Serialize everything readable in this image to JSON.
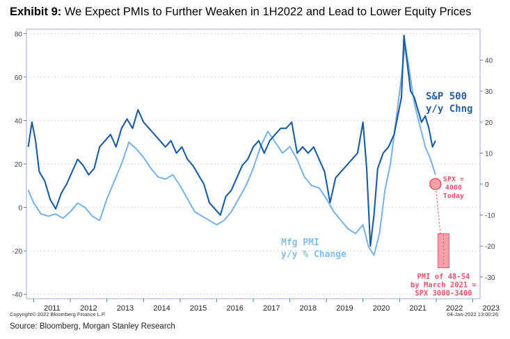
{
  "exhibit": {
    "label": "Exhibit 9:",
    "title": "We Expect PMIs to Further Weaken in 1H2022 and Lead to Lower Equity Prices"
  },
  "source": "Source: Bloomberg, Morgan Stanley Research",
  "copyright": "Copyright© 2022 Bloomberg Finance L.P.",
  "timestamp": "04-Jan-2022 13:00:26",
  "colors": {
    "spx_line": "#1a5aa0",
    "pmi_line": "#7ab4e6",
    "spx_label": "#2a5f9e",
    "pmi_label": "#86bbe8",
    "annotation": "#e0566f",
    "box_fill": "#f6a0a8",
    "axis": "#5a7fb3"
  },
  "chart_data": {
    "type": "line",
    "title": "We Expect PMIs to Further Weaken in 1H2022 and Lead to Lower Equity Prices",
    "x_label_ticks": [
      "2011",
      "2012",
      "2013",
      "2014",
      "2015",
      "2016",
      "2017",
      "2018",
      "2019",
      "2020",
      "2021",
      "2022",
      "2023"
    ],
    "xlim": [
      2010.8,
      2023.2
    ],
    "left_axis": {
      "label": "Mfg PMI y/y % Change",
      "ylim": [
        -42,
        82
      ],
      "ticks": [
        -40,
        -20,
        0,
        20,
        40,
        60,
        80
      ]
    },
    "right_axis": {
      "label": "S&P 500 y/y Chng",
      "ylim": [
        -37,
        50
      ],
      "ticks": [
        -30,
        -20,
        -10,
        0,
        10,
        20,
        30,
        40
      ]
    },
    "series": [
      {
        "name": "S&P 500 y/y Chng",
        "axis": "right",
        "x": [
          2010.85,
          2010.95,
          2011.05,
          2011.15,
          2011.3,
          2011.45,
          2011.6,
          2011.75,
          2011.9,
          2012.05,
          2012.2,
          2012.35,
          2012.5,
          2012.65,
          2012.8,
          2012.95,
          2013.1,
          2013.25,
          2013.4,
          2013.55,
          2013.7,
          2013.85,
          2014.0,
          2014.15,
          2014.3,
          2014.45,
          2014.6,
          2014.75,
          2014.9,
          2015.05,
          2015.2,
          2015.35,
          2015.5,
          2015.65,
          2015.8,
          2015.95,
          2016.1,
          2016.25,
          2016.4,
          2016.55,
          2016.7,
          2016.85,
          2017.0,
          2017.15,
          2017.3,
          2017.45,
          2017.6,
          2017.75,
          2017.9,
          2018.05,
          2018.2,
          2018.35,
          2018.5,
          2018.65,
          2018.8,
          2018.95,
          2019.1,
          2019.25,
          2019.4,
          2019.55,
          2019.7,
          2019.85,
          2020.0,
          2020.1,
          2020.2,
          2020.3,
          2020.4,
          2020.55,
          2020.7,
          2020.85,
          2020.95,
          2021.05,
          2021.12,
          2021.2,
          2021.3,
          2021.4,
          2021.5,
          2021.6,
          2021.7,
          2021.8,
          2021.9,
          2021.98
        ],
        "values": [
          12,
          20,
          14,
          4,
          1,
          -5,
          -8,
          -3,
          0,
          4,
          8,
          6,
          3,
          5,
          12,
          14,
          16,
          12,
          18,
          21,
          18,
          24,
          20,
          18,
          16,
          14,
          12,
          14,
          10,
          12,
          8,
          6,
          3,
          0,
          -6,
          -8,
          -10,
          -4,
          -2,
          2,
          6,
          8,
          12,
          14,
          10,
          14,
          16,
          18,
          18,
          20,
          10,
          12,
          10,
          12,
          8,
          4,
          -6,
          2,
          4,
          6,
          8,
          10,
          20,
          5,
          -20,
          -10,
          5,
          10,
          12,
          16,
          22,
          28,
          48,
          40,
          30,
          28,
          24,
          20,
          22,
          18,
          12,
          14
        ]
      },
      {
        "name": "Mfg PMI y/y % Change",
        "axis": "left",
        "x": [
          2010.85,
          2011.0,
          2011.2,
          2011.4,
          2011.6,
          2011.8,
          2012.0,
          2012.2,
          2012.4,
          2012.6,
          2012.8,
          2013.0,
          2013.2,
          2013.4,
          2013.6,
          2013.8,
          2014.0,
          2014.2,
          2014.4,
          2014.6,
          2014.8,
          2015.0,
          2015.2,
          2015.4,
          2015.6,
          2015.8,
          2016.0,
          2016.2,
          2016.4,
          2016.6,
          2016.8,
          2017.0,
          2017.2,
          2017.4,
          2017.6,
          2017.8,
          2018.0,
          2018.2,
          2018.4,
          2018.6,
          2018.8,
          2019.0,
          2019.2,
          2019.4,
          2019.6,
          2019.8,
          2020.0,
          2020.15,
          2020.3,
          2020.45,
          2020.6,
          2020.75,
          2020.9,
          2021.05,
          2021.15,
          2021.25,
          2021.4,
          2021.55,
          2021.7,
          2021.85,
          2021.98
        ],
        "values": [
          8,
          2,
          -3,
          -4,
          -3,
          -5,
          -2,
          2,
          0,
          -4,
          -6,
          4,
          12,
          20,
          30,
          27,
          23,
          18,
          14,
          13,
          15,
          10,
          4,
          -2,
          -4,
          -6,
          -8,
          -6,
          -2,
          4,
          10,
          18,
          28,
          35,
          30,
          25,
          28,
          22,
          14,
          10,
          9,
          4,
          -2,
          -6,
          -10,
          -12,
          -8,
          -18,
          -22,
          -12,
          8,
          20,
          40,
          60,
          75,
          65,
          48,
          38,
          28,
          22,
          15
        ]
      },
      {
        "name": "Projection",
        "axis": "right",
        "x": [
          2021.98,
          2022.2
        ],
        "values": [
          0,
          -26
        ]
      }
    ],
    "annotations": [
      {
        "text": [
          "S&P 500",
          "y/y Chng"
        ],
        "color_key": "spx_label"
      },
      {
        "text": [
          "Mfg PMI",
          "y/y % Change"
        ],
        "color_key": "pmi_label"
      },
      {
        "text": [
          "SPX =",
          "4000",
          "Today"
        ],
        "color_key": "annotation",
        "x": 2021.98,
        "y_right": 0
      },
      {
        "text": [
          "PMI of 48-54",
          "by March 2021 =",
          "SPX 3000-3400"
        ],
        "color_key": "annotation",
        "range_right": [
          -27,
          -16
        ]
      }
    ]
  }
}
